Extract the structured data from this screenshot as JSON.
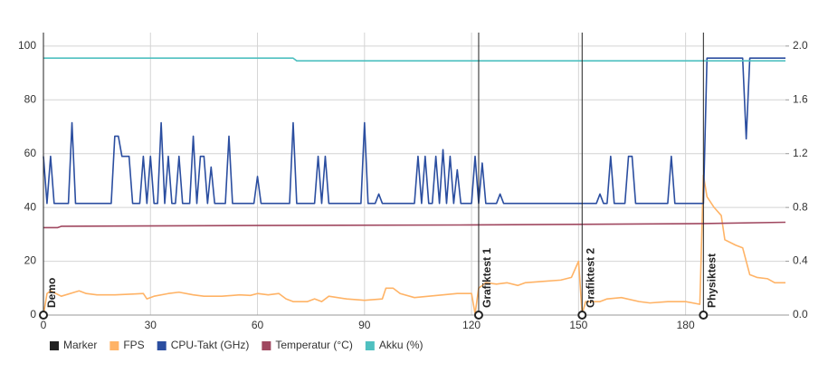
{
  "chart_data": {
    "type": "line",
    "xlim": [
      0,
      208
    ],
    "xticks": [
      0,
      30,
      60,
      90,
      120,
      150,
      180
    ],
    "ylim": [
      0,
      105
    ],
    "yticks": [
      0,
      20,
      40,
      60,
      80,
      100
    ],
    "y2lim": [
      0,
      2.1
    ],
    "y2ticks": [
      {
        "value": 0,
        "label": "0.0"
      },
      0.4,
      0.8,
      1.2,
      1.6,
      {
        "value": 2,
        "label": "2.0"
      }
    ],
    "grid": true,
    "legend": "bottom",
    "markers": {
      "name": "Marker",
      "color": "#222222",
      "x": [
        0,
        122,
        151,
        185
      ],
      "labels": [
        "Demo",
        "Grafiktest 1",
        "Grafiktest 2",
        "Physiktest"
      ]
    },
    "series": [
      {
        "name": "FPS",
        "color": "#ffb366",
        "x": [
          0,
          1,
          2,
          5,
          10,
          12,
          15,
          20,
          25,
          28,
          29,
          31,
          35,
          38,
          42,
          45,
          50,
          55,
          58,
          60,
          63,
          66,
          68,
          70,
          74,
          76,
          78,
          80,
          85,
          90,
          95,
          96,
          98,
          100,
          104,
          108,
          112,
          116,
          120,
          121,
          122,
          124,
          127,
          130,
          133,
          135,
          140,
          145,
          148,
          150,
          151,
          152,
          156,
          158,
          162,
          167,
          170,
          175,
          180,
          184,
          185,
          186,
          188,
          190,
          191,
          194,
          196,
          198,
          200,
          203,
          205,
          208
        ],
        "values": [
          0,
          8,
          9,
          7,
          9,
          8,
          7.5,
          7.5,
          7.8,
          8,
          6,
          7,
          8,
          8.5,
          7.5,
          7,
          7,
          7.5,
          7.3,
          8,
          7.5,
          8,
          6,
          5,
          5,
          6,
          5,
          7,
          6,
          5.5,
          6,
          10,
          10,
          8,
          6.5,
          7,
          7.5,
          8,
          8,
          0.5,
          10,
          12,
          11.5,
          12,
          11,
          12,
          12.5,
          13,
          14,
          20,
          0.5,
          5,
          5,
          6,
          6.5,
          5,
          4.5,
          5,
          5,
          4,
          52,
          44,
          40,
          37,
          28,
          26,
          25,
          15,
          14,
          13.5,
          12,
          12
        ]
      },
      {
        "name": "CPU-Takt (GHz)",
        "color": "#2b4ea0",
        "axis": "y2",
        "x": [
          0,
          1,
          2,
          3,
          7,
          8,
          9,
          19,
          20,
          21,
          22,
          24,
          25,
          27,
          28,
          29,
          30,
          31,
          32,
          33,
          34,
          35,
          36,
          37,
          38,
          39,
          41,
          42,
          43,
          44,
          45,
          46,
          47,
          48,
          51,
          52,
          53,
          59,
          60,
          61,
          69,
          70,
          71,
          76,
          77,
          78,
          79,
          80,
          89,
          90,
          91,
          93,
          94,
          95,
          104,
          105,
          106,
          107,
          108,
          109,
          110,
          111,
          112,
          113,
          114,
          115,
          116,
          117,
          120,
          121,
          122,
          123,
          124,
          127,
          128,
          129,
          155,
          156,
          157,
          158,
          159,
          160,
          163,
          164,
          165,
          166,
          175,
          176,
          177,
          185,
          186,
          196,
          197,
          198,
          208
        ],
        "values": [
          1.18,
          0.83,
          1.18,
          0.83,
          0.83,
          1.43,
          0.83,
          0.83,
          1.33,
          1.33,
          1.18,
          1.18,
          0.83,
          0.83,
          1.18,
          0.83,
          1.18,
          0.83,
          0.83,
          1.43,
          0.83,
          1.18,
          0.83,
          0.83,
          1.18,
          0.83,
          0.83,
          1.33,
          0.83,
          1.18,
          1.18,
          0.83,
          1.1,
          0.83,
          0.83,
          1.33,
          0.83,
          0.83,
          1.03,
          0.83,
          0.83,
          1.43,
          0.83,
          0.83,
          1.18,
          0.83,
          1.18,
          0.83,
          0.83,
          1.43,
          0.83,
          0.83,
          0.9,
          0.83,
          0.83,
          1.18,
          0.83,
          1.18,
          0.83,
          0.83,
          1.18,
          0.83,
          1.23,
          0.83,
          1.18,
          0.83,
          1.08,
          0.83,
          0.83,
          1.18,
          0.83,
          1.13,
          0.83,
          0.83,
          0.9,
          0.83,
          0.83,
          0.9,
          0.83,
          0.83,
          1.18,
          0.83,
          0.83,
          1.18,
          1.18,
          0.83,
          0.83,
          1.18,
          0.83,
          0.83,
          1.91,
          1.91,
          1.31,
          1.91,
          1.91
        ]
      },
      {
        "name": "Temperatur (°C)",
        "color": "#a04860",
        "x": [
          0,
          4,
          5,
          60,
          120,
          185,
          208
        ],
        "values": [
          32.5,
          32.5,
          33,
          33.3,
          33.5,
          34,
          34.5
        ]
      },
      {
        "name": "Akku (%)",
        "color": "#4fc0c0",
        "x": [
          0,
          70,
          71,
          208
        ],
        "values": [
          95.5,
          95.5,
          94.5,
          94.5
        ]
      }
    ]
  }
}
